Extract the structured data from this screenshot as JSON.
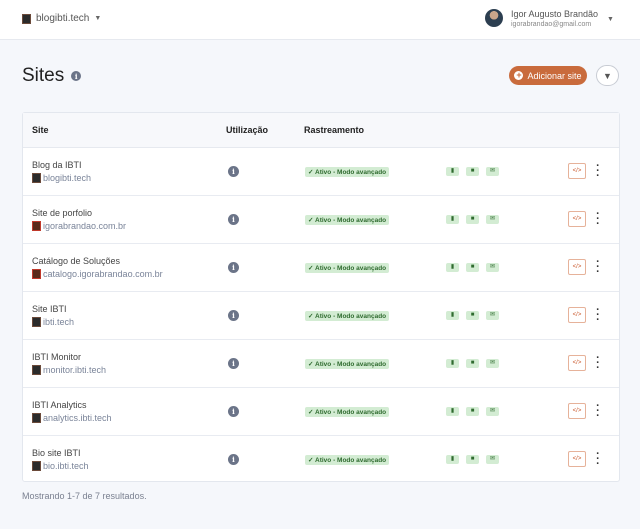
{
  "header": {
    "site_selector": "blogibti.tech",
    "user_name": "Igor Augusto Brandão",
    "user_email": "igorabrandao@gmail.com"
  },
  "page": {
    "title": "Sites",
    "add_button": "Adicionar site"
  },
  "table": {
    "columns": [
      "Site",
      "Utilização",
      "Rastreamento"
    ],
    "rows": [
      {
        "name": "Blog da IBTI",
        "url": "blogibti.tech",
        "status": "✓ Ativo - Modo avançado"
      },
      {
        "name": "Site de porfolio",
        "url": "igorabrandao.com.br",
        "status": "✓ Ativo - Modo avançado"
      },
      {
        "name": "Catálogo de Soluções",
        "url": "catalogo.igorabrandao.com.br",
        "status": "✓ Ativo - Modo avançado"
      },
      {
        "name": "Site IBTI",
        "url": "ibti.tech",
        "status": "✓ Ativo - Modo avançado"
      },
      {
        "name": "IBTI Monitor",
        "url": "monitor.ibti.tech",
        "status": "✓ Ativo - Modo avançado"
      },
      {
        "name": "IBTI Analytics",
        "url": "analytics.ibti.tech",
        "status": "✓ Ativo - Modo avançado"
      },
      {
        "name": "Bio site IBTI",
        "url": "bio.ibti.tech",
        "status": "✓ Ativo - Modo avançado"
      }
    ]
  },
  "footer": {
    "results": "Mostrando 1-7 de 7 resultados."
  },
  "colors": {
    "accent": "#c96b3c",
    "badge_bg": "#d3ecd3",
    "badge_text": "#2f6b2f"
  }
}
